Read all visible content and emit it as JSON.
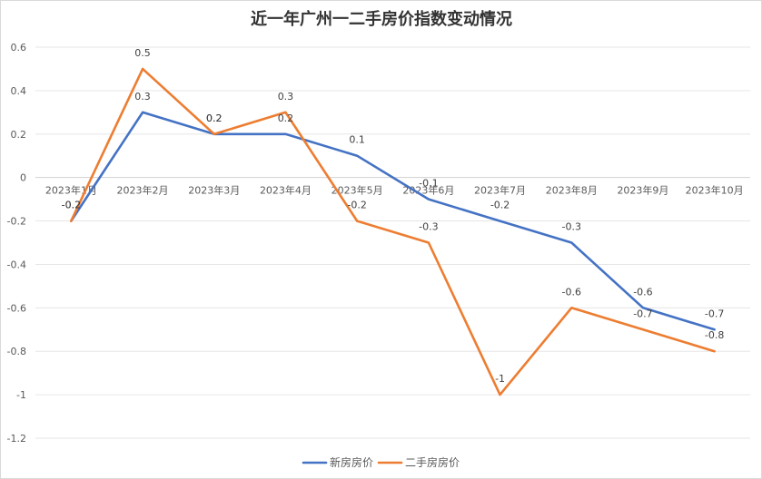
{
  "chart_data": {
    "type": "line",
    "title": "近一年广州一二手房价指数变动情况",
    "categories": [
      "2023年1月",
      "2023年2月",
      "2023年3月",
      "2023年4月",
      "2023年5月",
      "2023年6月",
      "2023年7月",
      "2023年8月",
      "2023年9月",
      "2023年10月"
    ],
    "series": [
      {
        "name": "新房房价",
        "color": "#4472C4",
        "values": [
          -0.2,
          0.3,
          0.2,
          0.2,
          0.1,
          -0.1,
          -0.2,
          -0.3,
          -0.6,
          -0.7
        ]
      },
      {
        "name": "二手房房价",
        "color": "#ED7D31",
        "values": [
          -0.2,
          0.5,
          0.2,
          0.3,
          -0.2,
          -0.3,
          -1,
          -0.6,
          -0.7,
          -0.8
        ]
      }
    ],
    "ylim": [
      -1.2,
      0.6
    ],
    "yticks": [
      "0.6",
      "0.4",
      "0.2",
      "0",
      "-0.2",
      "-0.4",
      "-0.6",
      "-0.8",
      "-1",
      "-1.2"
    ],
    "ytick_values": [
      0.6,
      0.4,
      0.2,
      0,
      -0.2,
      -0.4,
      -0.6,
      -0.8,
      -1,
      -1.2
    ],
    "grid": true,
    "legend": "bottom",
    "xlabel": "",
    "ylabel": ""
  }
}
